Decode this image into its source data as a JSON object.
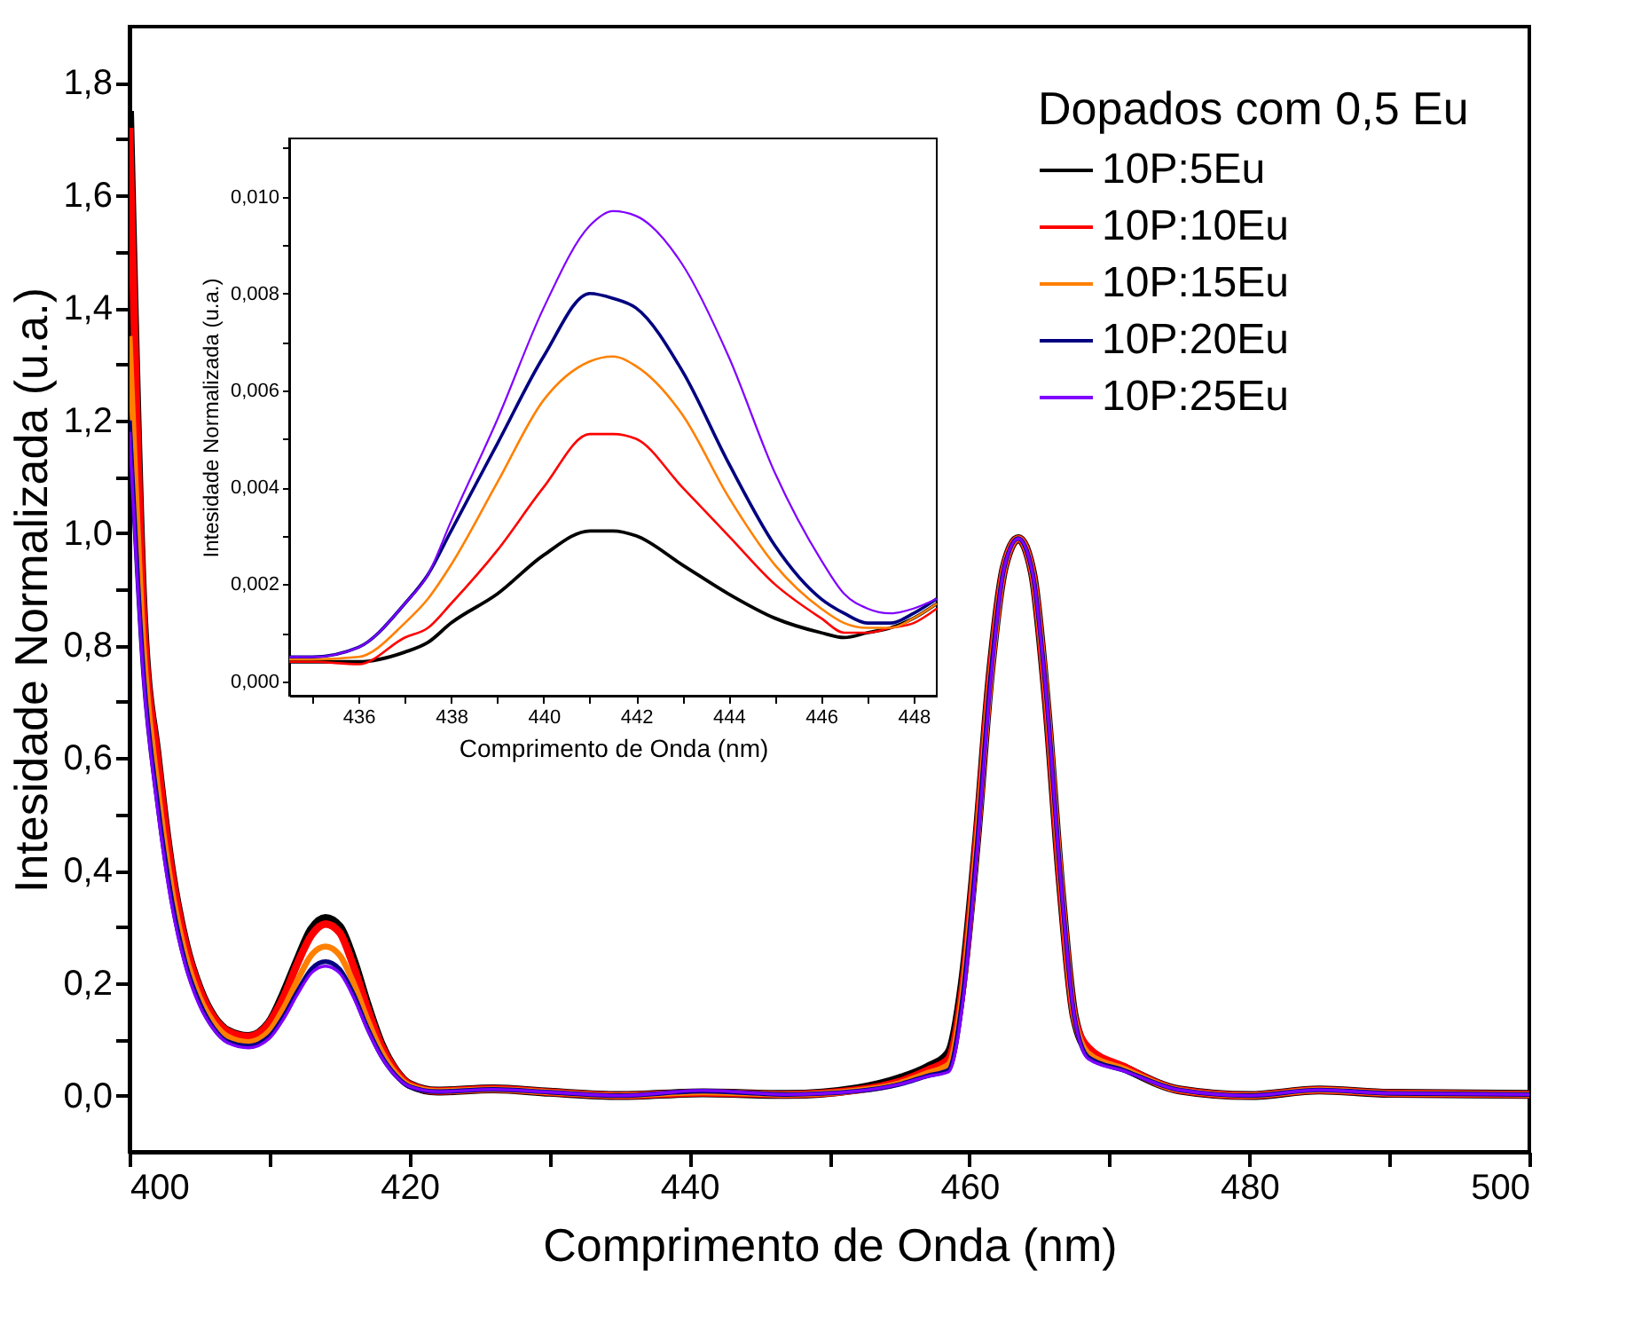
{
  "chart_data": [
    {
      "type": "line",
      "xlabel": "Comprimento de Onda (nm)",
      "ylabel": "Intesidade Normalizada (u.a.)",
      "legend_title": "Dopados com 0,5 Eu",
      "legend": "top right",
      "grid": false,
      "x": [
        400,
        401,
        402,
        403,
        404,
        405,
        406,
        407,
        408.5,
        410,
        411,
        412,
        413,
        414,
        415,
        416,
        417,
        418,
        419,
        420,
        422,
        426,
        430,
        435,
        441,
        447,
        452,
        455,
        457,
        458.5,
        459.5,
        460.5,
        461.5,
        462.5,
        463.5,
        464.5,
        465.5,
        466.5,
        467.5,
        468.5,
        471,
        475,
        480,
        485,
        490,
        500
      ],
      "xlim": [
        400,
        500
      ],
      "xticks": [
        400,
        {
          "value": 410,
          "label": null
        },
        420,
        {
          "value": 430,
          "label": null
        },
        440,
        {
          "value": 450,
          "label": null
        },
        460,
        {
          "value": 470,
          "label": null
        },
        480,
        {
          "value": 490,
          "label": null
        },
        500
      ],
      "ylim": [
        -0.1,
        1.9
      ],
      "yticks": [
        {
          "value": 0,
          "label": "0,0"
        },
        {
          "value": 0.1,
          "label": null
        },
        {
          "value": 0.2,
          "label": "0,2"
        },
        {
          "value": 0.3,
          "label": null
        },
        {
          "value": 0.4,
          "label": "0,4"
        },
        {
          "value": 0.5,
          "label": null
        },
        {
          "value": 0.6,
          "label": "0,6"
        },
        {
          "value": 0.7,
          "label": null
        },
        {
          "value": 0.8,
          "label": "0,8"
        },
        {
          "value": 0.9,
          "label": null
        },
        {
          "value": 1.0,
          "label": "1,0"
        },
        {
          "value": 1.1,
          "label": null
        },
        {
          "value": 1.2,
          "label": "1,2"
        },
        {
          "value": 1.3,
          "label": null
        },
        {
          "value": 1.4,
          "label": "1,4"
        },
        {
          "value": 1.5,
          "label": null
        },
        {
          "value": 1.6,
          "label": "1,6"
        },
        {
          "value": 1.7,
          "label": null
        },
        {
          "value": 1.8,
          "label": "1,8"
        }
      ],
      "series": [
        {
          "name": " 10P:5Eu",
          "color": "#000000",
          "values": [
            1.75,
            0.85,
            0.6,
            0.4,
            0.27,
            0.19,
            0.14,
            0.115,
            0.105,
            0.13,
            0.18,
            0.24,
            0.295,
            0.315,
            0.3,
            0.24,
            0.16,
            0.09,
            0.045,
            0.02,
            0.008,
            0.012,
            0.006,
            0.0,
            0.005,
            0.002,
            0.012,
            0.03,
            0.05,
            0.075,
            0.2,
            0.45,
            0.75,
            0.94,
            0.99,
            0.93,
            0.7,
            0.38,
            0.14,
            0.08,
            0.05,
            0.01,
            0.0,
            0.01,
            0.004,
            0.002
          ]
        },
        {
          "name": "10P:10Eu",
          "color": "#ff0000",
          "values": [
            1.72,
            0.85,
            0.6,
            0.4,
            0.27,
            0.19,
            0.14,
            0.115,
            0.105,
            0.13,
            0.175,
            0.235,
            0.285,
            0.305,
            0.29,
            0.23,
            0.155,
            0.088,
            0.045,
            0.02,
            0.008,
            0.012,
            0.006,
            0.0,
            0.005,
            0.002,
            0.01,
            0.025,
            0.045,
            0.065,
            0.19,
            0.45,
            0.75,
            0.94,
            0.99,
            0.93,
            0.7,
            0.38,
            0.14,
            0.085,
            0.052,
            0.01,
            0.0,
            0.01,
            0.004,
            0.002
          ]
        },
        {
          "name": "10P:15Eu",
          "color": "#ff8000",
          "values": [
            1.35,
            0.8,
            0.55,
            0.37,
            0.25,
            0.175,
            0.13,
            0.105,
            0.095,
            0.115,
            0.155,
            0.205,
            0.25,
            0.265,
            0.25,
            0.2,
            0.135,
            0.078,
            0.04,
            0.018,
            0.008,
            0.011,
            0.006,
            0.0,
            0.006,
            0.002,
            0.009,
            0.022,
            0.04,
            0.055,
            0.18,
            0.44,
            0.74,
            0.94,
            0.99,
            0.93,
            0.71,
            0.39,
            0.14,
            0.075,
            0.048,
            0.01,
            0.0,
            0.01,
            0.004,
            0.002
          ]
        },
        {
          "name": "10P:20Eu",
          "color": "#000080",
          "values": [
            1.2,
            0.75,
            0.52,
            0.35,
            0.235,
            0.165,
            0.12,
            0.096,
            0.088,
            0.105,
            0.14,
            0.185,
            0.225,
            0.238,
            0.225,
            0.18,
            0.12,
            0.07,
            0.036,
            0.016,
            0.007,
            0.011,
            0.006,
            0.0,
            0.008,
            0.002,
            0.008,
            0.02,
            0.035,
            0.045,
            0.17,
            0.43,
            0.74,
            0.94,
            0.99,
            0.93,
            0.71,
            0.39,
            0.14,
            0.068,
            0.045,
            0.01,
            0.0,
            0.01,
            0.004,
            0.002
          ]
        },
        {
          "name": "10P:25Eu",
          "color": "#8000ff",
          "values": [
            1.18,
            0.74,
            0.51,
            0.34,
            0.23,
            0.16,
            0.118,
            0.094,
            0.085,
            0.102,
            0.136,
            0.18,
            0.218,
            0.23,
            0.218,
            0.175,
            0.117,
            0.068,
            0.035,
            0.016,
            0.007,
            0.011,
            0.006,
            0.0,
            0.009,
            0.002,
            0.008,
            0.02,
            0.034,
            0.042,
            0.16,
            0.42,
            0.73,
            0.94,
            0.99,
            0.93,
            0.71,
            0.39,
            0.14,
            0.065,
            0.044,
            0.01,
            0.0,
            0.01,
            0.004,
            0.002
          ]
        }
      ]
    },
    {
      "type": "line",
      "xlabel": "Comprimento de Onda (nm)",
      "ylabel": "Intesidade Normalizada (u.a.)",
      "x": [
        434.5,
        435,
        436,
        437,
        437.5,
        438,
        439,
        440,
        441,
        441.5,
        442,
        443,
        444,
        445,
        446,
        446.5,
        447,
        447.5,
        448,
        448.5
      ],
      "xlim": [
        434.5,
        448.5
      ],
      "xticks": [
        {
          "value": 435,
          "label": null
        },
        436,
        {
          "value": 437,
          "label": null
        },
        438,
        {
          "value": 439,
          "label": null
        },
        440,
        {
          "value": 441,
          "label": null
        },
        442,
        {
          "value": 443,
          "label": null
        },
        444,
        {
          "value": 445,
          "label": null
        },
        446,
        {
          "value": 447,
          "label": null
        },
        448
      ],
      "ylim": [
        -0.0003,
        0.0112
      ],
      "yticks": [
        {
          "value": 0,
          "label": "0,000"
        },
        {
          "value": 0.001,
          "label": null
        },
        {
          "value": 0.002,
          "label": "0,002"
        },
        {
          "value": 0.003,
          "label": null
        },
        {
          "value": 0.004,
          "label": "0,004"
        },
        {
          "value": 0.005,
          "label": null
        },
        {
          "value": 0.006,
          "label": "0,006"
        },
        {
          "value": 0.007,
          "label": null
        },
        {
          "value": 0.008,
          "label": "0,008"
        },
        {
          "value": 0.009,
          "label": null
        },
        {
          "value": 0.01,
          "label": "0,010"
        },
        {
          "value": 0.011,
          "label": null
        }
      ],
      "series": [
        {
          "color": "#000000",
          "values": [
            0.0004,
            0.0004,
            0.0004,
            0.0006,
            0.0008,
            0.0012,
            0.0018,
            0.0026,
            0.0031,
            0.0031,
            0.003,
            0.0024,
            0.0018,
            0.0013,
            0.001,
            0.0009,
            0.001,
            0.0011,
            0.0013,
            0.0016
          ]
        },
        {
          "color": "#ff0000",
          "values": [
            0.0004,
            0.0004,
            0.00035,
            0.0009,
            0.0011,
            0.0016,
            0.0027,
            0.004,
            0.0051,
            0.0051,
            0.005,
            0.004,
            0.003,
            0.002,
            0.0013,
            0.001,
            0.001,
            0.0011,
            0.0012,
            0.0015
          ]
        },
        {
          "color": "#ff8000",
          "values": [
            0.00045,
            0.00045,
            0.0005,
            0.0012,
            0.0017,
            0.0024,
            0.0041,
            0.0058,
            0.0066,
            0.0067,
            0.0065,
            0.0055,
            0.0038,
            0.0024,
            0.0015,
            0.0012,
            0.0011,
            0.0011,
            0.0013,
            0.0016
          ]
        },
        {
          "color": "#000080",
          "values": [
            0.0005,
            0.0005,
            0.0007,
            0.0016,
            0.0022,
            0.0031,
            0.0049,
            0.0067,
            0.008,
            0.0079,
            0.0077,
            0.0064,
            0.0045,
            0.0028,
            0.0017,
            0.0014,
            0.0012,
            0.0012,
            0.0014,
            0.0017
          ]
        },
        {
          "color": "#8000ff",
          "values": [
            0.0005,
            0.0005,
            0.0007,
            0.0016,
            0.0022,
            0.0033,
            0.0054,
            0.0077,
            0.0094,
            0.0097,
            0.0096,
            0.0086,
            0.0067,
            0.0043,
            0.0025,
            0.0018,
            0.0015,
            0.0014,
            0.0015,
            0.0017
          ]
        }
      ]
    }
  ]
}
